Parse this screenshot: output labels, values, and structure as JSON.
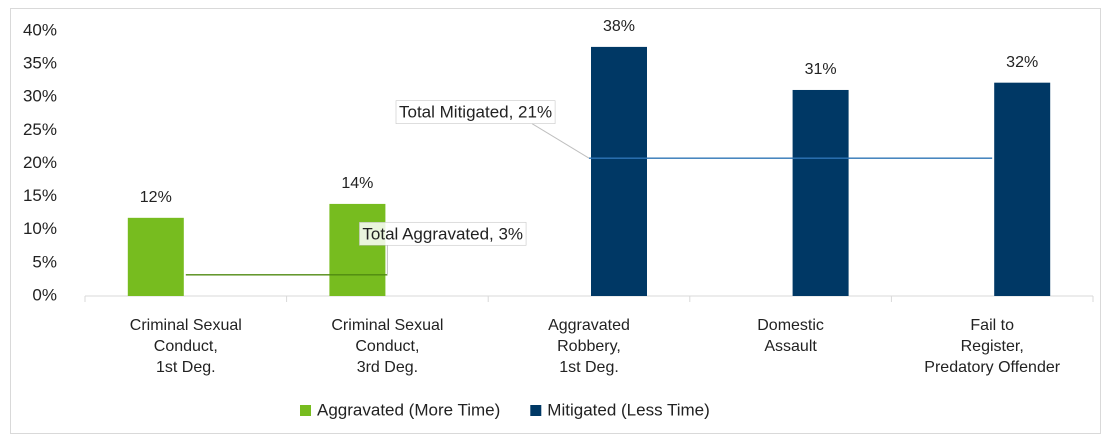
{
  "chart_data": {
    "type": "bar",
    "categories": [
      [
        "Criminal Sexual",
        "Conduct,",
        "1st Deg."
      ],
      [
        "Criminal Sexual",
        "Conduct,",
        "3rd Deg."
      ],
      [
        "Aggravated",
        "Robbery,",
        "1st Deg."
      ],
      [
        "Domestic",
        "Assault"
      ],
      [
        "Fail to",
        "Register,",
        "Predatory Offender"
      ]
    ],
    "series": [
      {
        "name": "Aggravated (More Time)",
        "color": "#77bc1f",
        "values": [
          11.8,
          13.9,
          null,
          null,
          null
        ],
        "value_labels": [
          "12%",
          "14%",
          null,
          null,
          null
        ]
      },
      {
        "name": "Mitigated (Less Time)",
        "color": "#003865",
        "values": [
          null,
          null,
          37.6,
          31.1,
          32.2
        ],
        "value_labels": [
          null,
          null,
          "38%",
          "31%",
          "32%"
        ]
      }
    ],
    "reference_lines": [
      {
        "label": "Total Aggravated, 3%",
        "color": "#4f8a10",
        "values": [
          3.2,
          3.2,
          null,
          null,
          null
        ]
      },
      {
        "label": "Total Mitigated, 21%",
        "color": "#2e75b6",
        "values": [
          null,
          null,
          20.8,
          20.8,
          20.8
        ]
      }
    ],
    "ylim": [
      0,
      40
    ],
    "yticks": [
      {
        "value": 0,
        "label": "0%"
      },
      {
        "value": 5,
        "label": "5%"
      },
      {
        "value": 10,
        "label": "10%"
      },
      {
        "value": 15,
        "label": "15%"
      },
      {
        "value": 20,
        "label": "20%"
      },
      {
        "value": 25,
        "label": "25%"
      },
      {
        "value": 30,
        "label": "30%"
      },
      {
        "value": 35,
        "label": "35%"
      },
      {
        "value": 40,
        "label": "40%"
      }
    ],
    "legend": "bottom"
  }
}
